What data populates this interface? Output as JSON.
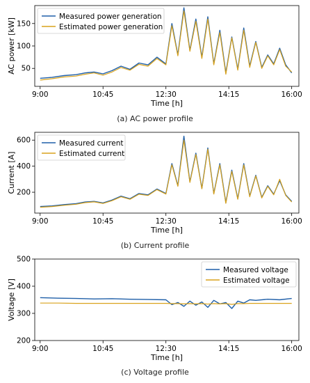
{
  "colors": {
    "measured": "#1f5fa8",
    "estimated": "#d9a21b"
  },
  "chart_data": [
    {
      "type": "line",
      "caption": "(a) AC power profile",
      "xlabel": "Time [h]",
      "ylabel": "AC power [kW]",
      "x_ticks": [
        "9:00",
        "10:45",
        "12:30",
        "14:15",
        "16:00"
      ],
      "xlim": [
        "8:51",
        "16:12"
      ],
      "ylim": [
        10,
        190
      ],
      "y_ticks": [
        50,
        100,
        150
      ],
      "legend": "top-left",
      "series": [
        {
          "name": "Measured power generation",
          "x": [
            "9:00",
            "9:20",
            "9:40",
            "10:00",
            "10:15",
            "10:30",
            "10:45",
            "11:00",
            "11:15",
            "11:30",
            "11:45",
            "12:00",
            "12:15",
            "12:30",
            "12:40",
            "12:50",
            "13:00",
            "13:10",
            "13:20",
            "13:30",
            "13:40",
            "13:50",
            "14:00",
            "14:10",
            "14:20",
            "14:30",
            "14:40",
            "14:50",
            "15:00",
            "15:10",
            "15:20",
            "15:30",
            "15:40",
            "15:50",
            "16:00"
          ],
          "values": [
            28,
            30,
            34,
            36,
            40,
            42,
            38,
            45,
            55,
            48,
            62,
            58,
            75,
            60,
            150,
            80,
            185,
            90,
            160,
            75,
            165,
            60,
            135,
            40,
            120,
            48,
            140,
            55,
            110,
            52,
            80,
            60,
            95,
            58,
            40
          ]
        },
        {
          "name": "Estimated power generation",
          "x": [
            "9:00",
            "9:20",
            "9:40",
            "10:00",
            "10:15",
            "10:30",
            "10:45",
            "11:00",
            "11:15",
            "11:30",
            "11:45",
            "12:00",
            "12:15",
            "12:30",
            "12:40",
            "12:50",
            "13:00",
            "13:10",
            "13:20",
            "13:30",
            "13:40",
            "13:50",
            "14:00",
            "14:10",
            "14:20",
            "14:30",
            "14:40",
            "14:50",
            "15:00",
            "15:10",
            "15:20",
            "15:30",
            "15:40",
            "15:50",
            "16:00"
          ],
          "values": [
            24,
            27,
            31,
            33,
            37,
            40,
            35,
            42,
            52,
            46,
            59,
            55,
            72,
            58,
            145,
            78,
            178,
            88,
            155,
            72,
            160,
            58,
            130,
            37,
            118,
            46,
            135,
            52,
            108,
            50,
            78,
            58,
            92,
            55,
            42
          ]
        }
      ]
    },
    {
      "type": "line",
      "caption": "(b) Current profile",
      "xlabel": "Time [h]",
      "ylabel": "Current [A]",
      "x_ticks": [
        "9:00",
        "10:45",
        "12:30",
        "14:15",
        "16:00"
      ],
      "xlim": [
        "8:51",
        "16:12"
      ],
      "ylim": [
        40,
        660
      ],
      "y_ticks": [
        200,
        400,
        600
      ],
      "legend": "top-left",
      "series": [
        {
          "name": "Measured current",
          "x": [
            "9:00",
            "9:20",
            "9:40",
            "10:00",
            "10:15",
            "10:30",
            "10:45",
            "11:00",
            "11:15",
            "11:30",
            "11:45",
            "12:00",
            "12:15",
            "12:30",
            "12:40",
            "12:50",
            "13:00",
            "13:10",
            "13:20",
            "13:30",
            "13:40",
            "13:50",
            "14:00",
            "14:10",
            "14:20",
            "14:30",
            "14:40",
            "14:50",
            "15:00",
            "15:10",
            "15:20",
            "15:30",
            "15:40",
            "15:50",
            "16:00"
          ],
          "values": [
            90,
            95,
            105,
            112,
            125,
            130,
            118,
            140,
            170,
            150,
            190,
            180,
            225,
            190,
            420,
            250,
            630,
            280,
            500,
            230,
            540,
            190,
            420,
            120,
            370,
            150,
            420,
            170,
            330,
            160,
            250,
            185,
            290,
            180,
            130
          ]
        },
        {
          "name": "Estimated current",
          "x": [
            "9:00",
            "9:20",
            "9:40",
            "10:00",
            "10:15",
            "10:30",
            "10:45",
            "11:00",
            "11:15",
            "11:30",
            "11:45",
            "12:00",
            "12:15",
            "12:30",
            "12:40",
            "12:50",
            "13:00",
            "13:10",
            "13:20",
            "13:30",
            "13:40",
            "13:50",
            "14:00",
            "14:10",
            "14:20",
            "14:30",
            "14:40",
            "14:50",
            "15:00",
            "15:10",
            "15:20",
            "15:30",
            "15:40",
            "15:50",
            "16:00"
          ],
          "values": [
            85,
            90,
            100,
            108,
            120,
            126,
            114,
            135,
            165,
            146,
            185,
            175,
            220,
            186,
            410,
            245,
            600,
            275,
            490,
            226,
            530,
            186,
            410,
            115,
            360,
            146,
            410,
            165,
            325,
            156,
            245,
            180,
            300,
            176,
            125
          ]
        }
      ]
    },
    {
      "type": "line",
      "caption": "(c) Voltage profile",
      "xlabel": "Time [h]",
      "ylabel": "Voltage [V]",
      "x_ticks": [
        "9:00",
        "10:45",
        "12:30",
        "14:15",
        "16:00"
      ],
      "xlim": [
        "8:51",
        "16:12"
      ],
      "ylim": [
        200,
        500
      ],
      "y_ticks": [
        200,
        300,
        400,
        500
      ],
      "legend": "top-right",
      "series": [
        {
          "name": "Measured voltage",
          "x": [
            "9:00",
            "9:30",
            "10:00",
            "10:30",
            "11:00",
            "11:30",
            "12:00",
            "12:30",
            "12:40",
            "12:50",
            "13:00",
            "13:10",
            "13:20",
            "13:30",
            "13:40",
            "13:50",
            "14:00",
            "14:10",
            "14:20",
            "14:30",
            "14:40",
            "14:50",
            "15:00",
            "15:20",
            "15:40",
            "16:00"
          ],
          "values": [
            358,
            356,
            355,
            353,
            354,
            352,
            351,
            350,
            332,
            340,
            326,
            345,
            330,
            342,
            322,
            348,
            335,
            340,
            318,
            345,
            338,
            350,
            348,
            352,
            350,
            355
          ]
        },
        {
          "name": "Estimated voltage",
          "x": [
            "9:00",
            "9:30",
            "10:00",
            "10:30",
            "11:00",
            "11:30",
            "12:00",
            "12:30",
            "12:40",
            "12:50",
            "13:00",
            "13:10",
            "13:20",
            "13:30",
            "13:40",
            "13:50",
            "14:00",
            "14:10",
            "14:20",
            "14:30",
            "14:40",
            "14:50",
            "15:00",
            "15:20",
            "15:40",
            "16:00"
          ],
          "values": [
            338,
            338,
            337,
            337,
            337,
            337,
            337,
            337,
            336,
            336,
            335,
            336,
            335,
            336,
            334,
            336,
            335,
            336,
            333,
            336,
            336,
            337,
            337,
            337,
            337,
            337
          ]
        }
      ]
    }
  ]
}
